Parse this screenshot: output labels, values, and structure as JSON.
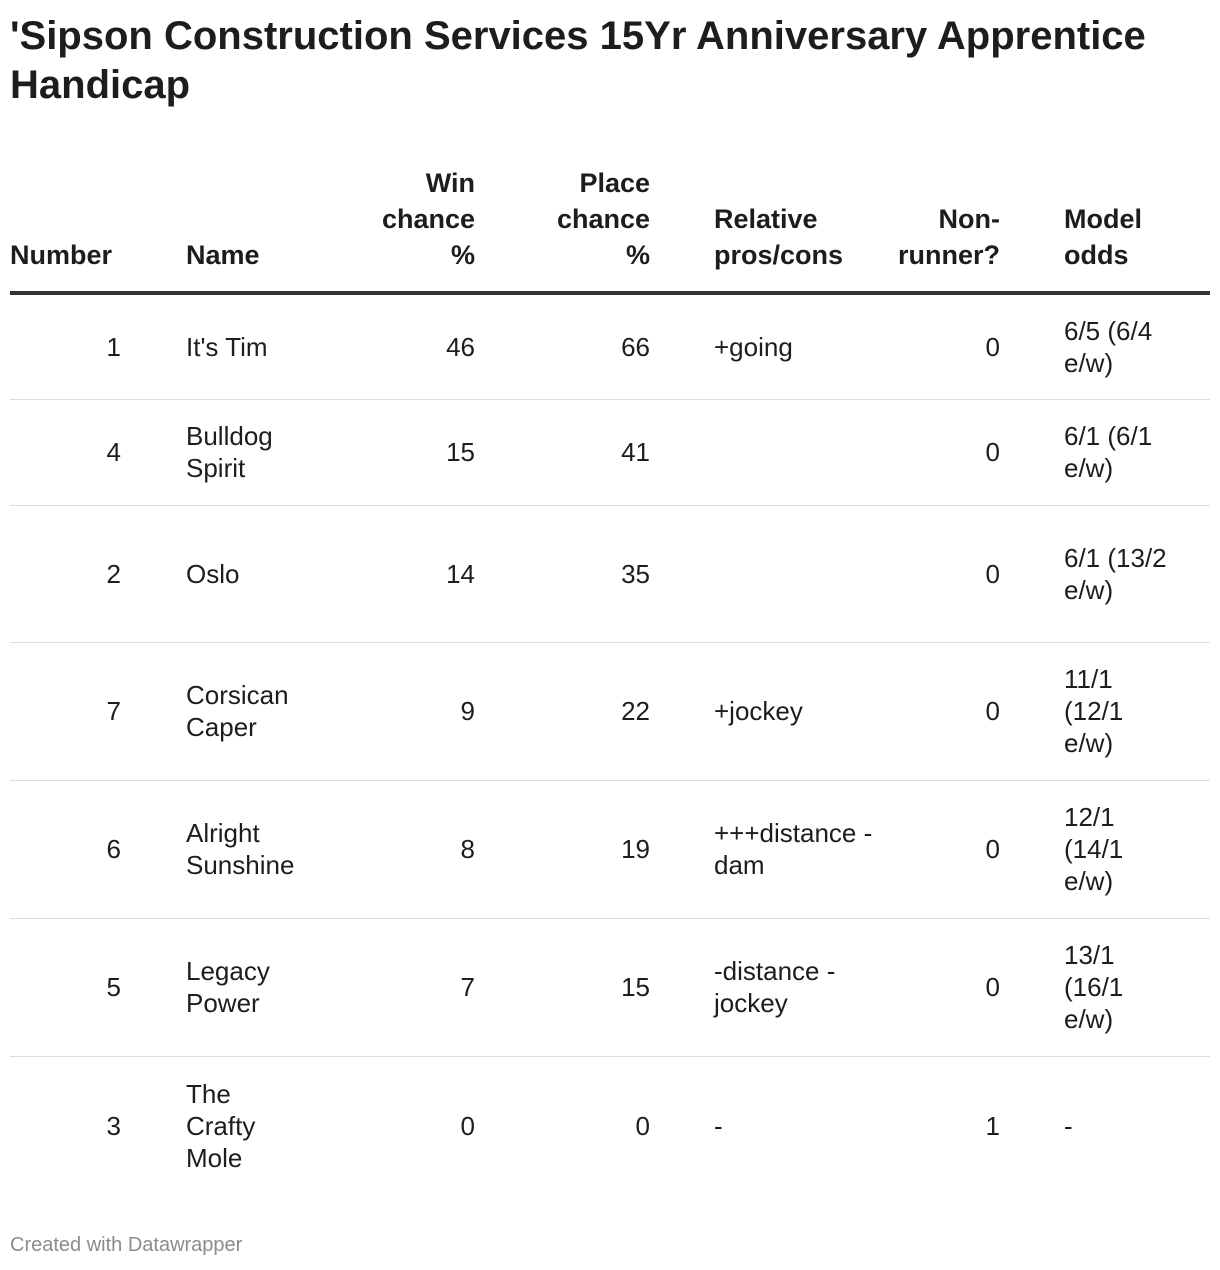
{
  "chart_data": {
    "type": "table",
    "title": "'Sipson Construction Services 15Yr Anniversary Apprentice Handicap",
    "columns": [
      "Number",
      "Name",
      "Win chance %",
      "Place chance %",
      "Relative pros/cons",
      "Non-runner?",
      "Model odds"
    ],
    "rows": [
      {
        "number": "1",
        "name": "It's Tim",
        "win": "46",
        "place": "66",
        "relative": "+going",
        "nonrunner": "0",
        "odds": "6/5 (6/4 e/w)"
      },
      {
        "number": "4",
        "name": "Bulldog Spirit",
        "win": "15",
        "place": "41",
        "relative": "",
        "nonrunner": "0",
        "odds": "6/1 (6/1 e/w)"
      },
      {
        "number": "2",
        "name": "Oslo",
        "win": "14",
        "place": "35",
        "relative": "",
        "nonrunner": "0",
        "odds": "6/1 (13/2 e/w)"
      },
      {
        "number": "7",
        "name": "Corsican Caper",
        "win": "9",
        "place": "22",
        "relative": "+jockey",
        "nonrunner": "0",
        "odds": "11/1 (12/1 e/w)"
      },
      {
        "number": "6",
        "name": "Alright Sunshine",
        "win": "8",
        "place": "19",
        "relative": "+++distance -dam",
        "nonrunner": "0",
        "odds": "12/1 (14/1 e/w)"
      },
      {
        "number": "5",
        "name": "Legacy Power",
        "win": "7",
        "place": "15",
        "relative": "-distance -jockey",
        "nonrunner": "0",
        "odds": "13/1 (16/1 e/w)"
      },
      {
        "number": "3",
        "name": "The Crafty Mole",
        "win": "0",
        "place": "0",
        "relative": "-",
        "nonrunner": "1",
        "odds": "-"
      }
    ]
  },
  "footer": "Created with Datawrapper"
}
